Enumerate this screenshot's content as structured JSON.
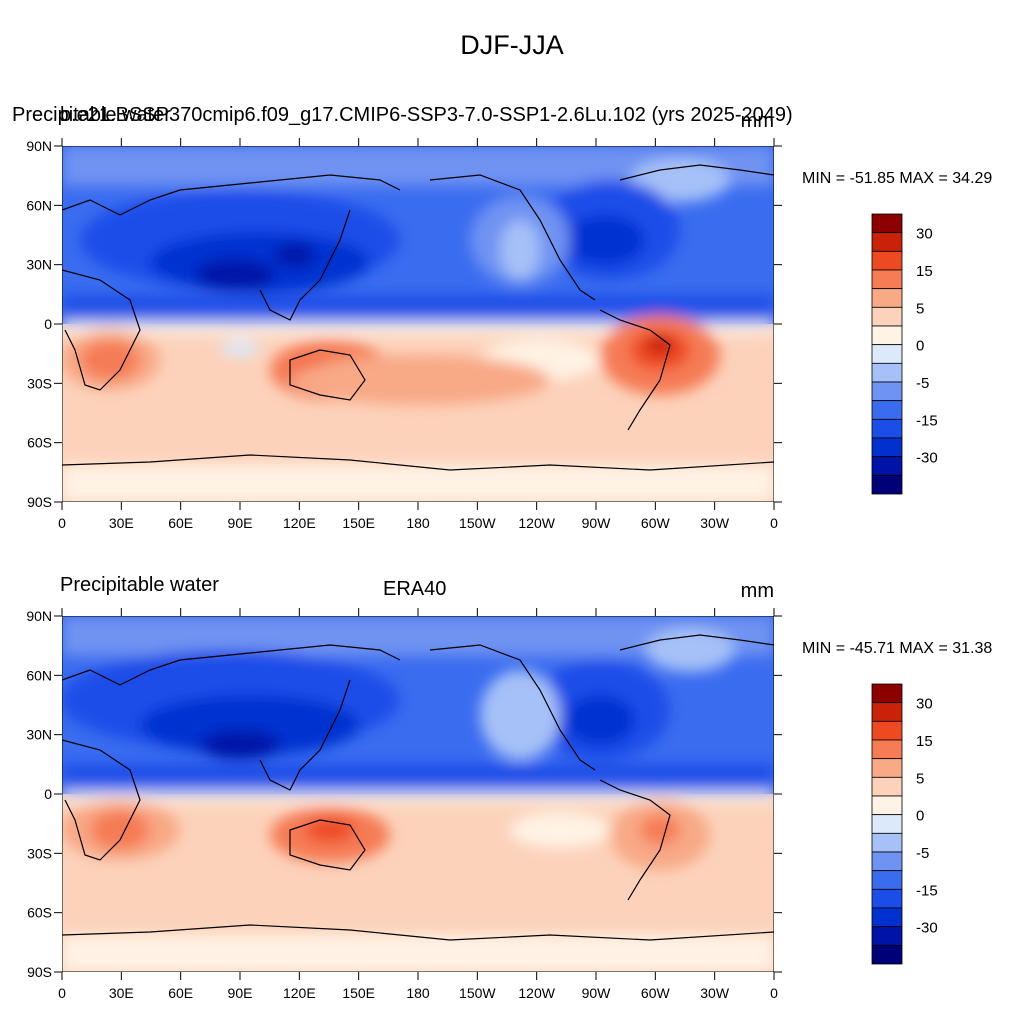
{
  "title": "DJF-JJA",
  "colors": {
    "levels_order": "dark-blue to dark-red",
    "palette": [
      "#000078",
      "#0013a8",
      "#0030d0",
      "#1b4ee8",
      "#3a6cf0",
      "#6f93f2",
      "#a6c1f7",
      "#dbe9fb",
      "#fff3e5",
      "#fcd2bb",
      "#f8a986",
      "#f57c55",
      "#ee4a22",
      "#c92209",
      "#8c0000"
    ]
  },
  "colorbar": {
    "labels": [
      "30",
      "15",
      "5",
      "0",
      "-5",
      "-15",
      "-30"
    ]
  },
  "axes": {
    "lat_labels": [
      "90N",
      "60N",
      "30N",
      "0",
      "30S",
      "60S",
      "90S"
    ],
    "lon_labels": [
      "0",
      "30E",
      "60E",
      "90E",
      "120E",
      "150E",
      "180",
      "150W",
      "120W",
      "90W",
      "60W",
      "30W",
      "0"
    ]
  },
  "panels": [
    {
      "left_label": "Precipitable water",
      "center_label": "b.e21.BSSP370cmip6.f09_g17.CMIP6-SSP3-7.0-SSP1-2.6Lu.102 (yrs 2025-2049)",
      "units": "mm",
      "stats": "MIN = -51.85 MAX =  34.29"
    },
    {
      "left_label": "Precipitable water",
      "center_label": "ERA40",
      "units": "mm",
      "stats": "MIN = -45.71 MAX =  31.38"
    }
  ]
}
